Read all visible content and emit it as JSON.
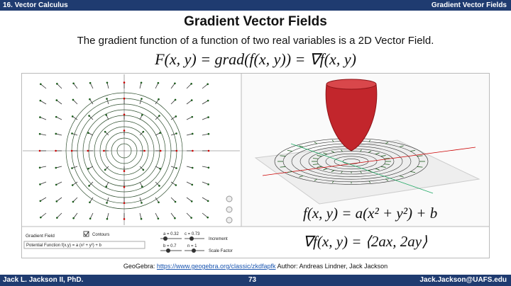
{
  "header": {
    "left": "16. Vector Calculus",
    "right": "Gradient Vector Fields"
  },
  "title": "Gradient Vector Fields",
  "subtitle": "The gradient function of a function of two real variables is a 2D Vector Field.",
  "equation": "F(x, y) = grad(f(x, y)) = ∇f(x, y)",
  "applet": {
    "potential": "f(x, y) = a(x² + y²) + b",
    "gradient": "∇f(x, y) = ⟨2ax, 2ay⟩",
    "controls": {
      "gradient_field": "Gradient Field",
      "contours": "Contours",
      "potential_function": "Potential Function f(x,y) = a (x² + y²) + b",
      "slider_a": "a = 0.32",
      "slider_c": "c = 0.73",
      "slider_b": "b = 0.7",
      "slider_n": "n = 1",
      "increment": "Increment",
      "scale_factor": "Scale Factor"
    }
  },
  "credit": {
    "source": "GeoGebra:",
    "link": "https://www.geogebra.org/classic/zkdfapfk",
    "author": "Author:  Andreas Lindner, Jack Jackson"
  },
  "footer": {
    "author": "Jack L. Jackson II, PhD.",
    "page": "73",
    "email": "Jack.Jackson@UAFS.edu"
  }
}
